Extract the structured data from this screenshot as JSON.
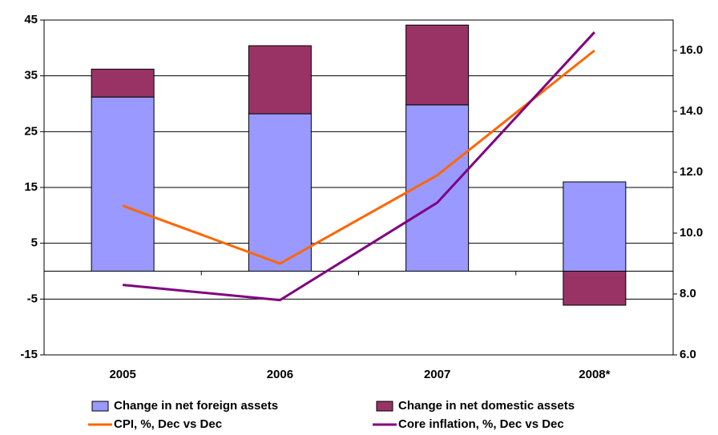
{
  "chart_data": {
    "type": "bar",
    "categories": [
      "2005",
      "2006",
      "2007",
      "2008*"
    ],
    "series": [
      {
        "name": "Change in net foreign assets",
        "color": "#9999ff",
        "type": "bar",
        "values": [
          31.2,
          28.2,
          29.8,
          16.0
        ]
      },
      {
        "name": "Change in net domestic assets",
        "color": "#993366",
        "type": "bar",
        "values": [
          5.0,
          12.2,
          14.3,
          -6.1
        ]
      },
      {
        "name": "CPI, %, Dec vs Dec",
        "color": "#ff6600",
        "type": "line",
        "axis": "y2",
        "values": [
          10.9,
          9.0,
          11.9,
          16.0
        ]
      },
      {
        "name": "Core inflation, %, Dec vs Dec",
        "color": "#800080",
        "type": "line",
        "axis": "y2",
        "values": [
          8.3,
          7.8,
          11.0,
          16.6
        ]
      }
    ],
    "ylim": [
      -15,
      45
    ],
    "yticks": [
      45,
      35,
      25,
      15,
      5,
      -5,
      -15
    ],
    "y2lim": [
      6,
      17
    ],
    "y2ticks": [
      {
        "value": 16,
        "label": "16.0"
      },
      {
        "value": 14,
        "label": "14.0"
      },
      {
        "value": 12,
        "label": "12.0"
      },
      {
        "value": 10,
        "label": "10.0"
      },
      {
        "value": 8,
        "label": "8.0"
      },
      {
        "value": 6,
        "label": "6.0"
      }
    ],
    "grid": true,
    "legend": "bottom"
  }
}
